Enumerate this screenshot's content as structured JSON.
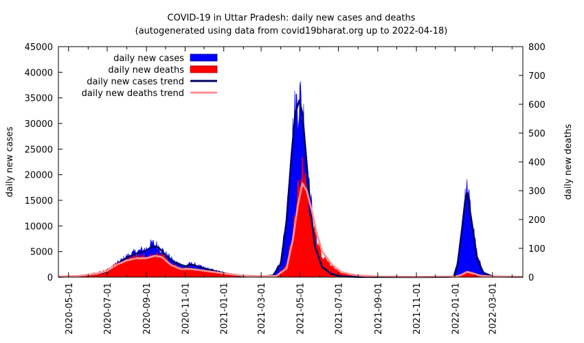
{
  "chart_data": {
    "type": "area",
    "title": "COVID-19 in Uttar Pradesh: daily new cases and deaths",
    "subtitle": "(autogenerated using data from covid19bharat.org up to 2022-04-18)",
    "ylabel": "daily new cases",
    "y2label": "daily new deaths",
    "ylim": [
      0,
      45000
    ],
    "y2lim": [
      0,
      800
    ],
    "xlim": [
      "2020-04-15",
      "2022-04-18"
    ],
    "yticks": [
      0,
      5000,
      10000,
      15000,
      20000,
      25000,
      30000,
      35000,
      40000,
      45000
    ],
    "y2ticks": [
      0,
      100,
      200,
      300,
      400,
      500,
      600,
      700,
      800
    ],
    "xticks": [
      "2020-05-01",
      "2020-07-01",
      "2020-09-01",
      "2020-11-01",
      "2021-01-01",
      "2021-03-01",
      "2021-05-01",
      "2021-07-01",
      "2021-09-01",
      "2021-11-01",
      "2022-01-01",
      "2022-03-01"
    ],
    "legend": {
      "position": "top-left",
      "entries": [
        {
          "label": "daily new cases",
          "color": "#0000ff",
          "style": "bar"
        },
        {
          "label": "daily new deaths",
          "color": "#ff0000",
          "style": "bar"
        },
        {
          "label": "daily new cases trend",
          "color": "#000060",
          "style": "line"
        },
        {
          "label": "daily new deaths trend",
          "color": "#ff9090",
          "style": "line"
        }
      ]
    },
    "series": [
      {
        "name": "daily new cases",
        "axis": "left",
        "style": "bars",
        "color": "#0000ff",
        "x": [
          "2020-04-15",
          "2020-05-15",
          "2020-06-15",
          "2020-07-01",
          "2020-07-15",
          "2020-08-01",
          "2020-08-15",
          "2020-09-01",
          "2020-09-10",
          "2020-09-20",
          "2020-10-01",
          "2020-10-15",
          "2020-11-01",
          "2020-11-10",
          "2020-12-01",
          "2020-12-20",
          "2021-01-01",
          "2021-02-01",
          "2021-03-01",
          "2021-03-20",
          "2021-04-01",
          "2021-04-10",
          "2021-04-18",
          "2021-04-24",
          "2021-05-01",
          "2021-05-08",
          "2021-05-15",
          "2021-05-25",
          "2021-06-05",
          "2021-06-20",
          "2021-07-05",
          "2021-08-01",
          "2021-09-01",
          "2021-11-01",
          "2021-12-20",
          "2021-12-30",
          "2022-01-05",
          "2022-01-12",
          "2022-01-17",
          "2022-01-20",
          "2022-01-27",
          "2022-02-05",
          "2022-02-15",
          "2022-03-01",
          "2022-04-18"
        ],
        "values": [
          100,
          300,
          700,
          1200,
          2500,
          4000,
          4800,
          5500,
          6500,
          6000,
          4500,
          3000,
          2200,
          2600,
          1800,
          1200,
          900,
          150,
          100,
          400,
          3000,
          12000,
          25000,
          33000,
          35000,
          30000,
          18000,
          8000,
          3000,
          1000,
          200,
          40,
          25,
          15,
          50,
          200,
          3000,
          10000,
          15000,
          17000,
          12000,
          4000,
          1000,
          200,
          50
        ]
      },
      {
        "name": "daily new deaths",
        "axis": "right",
        "style": "bars",
        "color": "#ff0000",
        "x": [
          "2020-04-15",
          "2020-05-15",
          "2020-06-15",
          "2020-07-01",
          "2020-07-15",
          "2020-08-01",
          "2020-08-15",
          "2020-09-01",
          "2020-09-15",
          "2020-09-25",
          "2020-10-10",
          "2020-10-25",
          "2020-11-10",
          "2020-11-25",
          "2020-12-15",
          "2021-01-01",
          "2021-02-01",
          "2021-03-01",
          "2021-03-25",
          "2021-04-10",
          "2021-04-20",
          "2021-04-28",
          "2021-05-05",
          "2021-05-12",
          "2021-05-20",
          "2021-05-28",
          "2021-06-05",
          "2021-06-20",
          "2021-07-05",
          "2021-07-20",
          "2021-08-01",
          "2021-09-01",
          "2021-11-01",
          "2022-01-01",
          "2022-01-10",
          "2022-01-20",
          "2022-01-28",
          "2022-02-10",
          "2022-03-01",
          "2022-04-18"
        ],
        "values": [
          3,
          5,
          15,
          25,
          45,
          60,
          70,
          70,
          78,
          72,
          45,
          30,
          30,
          25,
          20,
          15,
          5,
          3,
          5,
          40,
          150,
          290,
          370,
          280,
          200,
          120,
          80,
          40,
          15,
          10,
          7,
          2,
          1,
          3,
          8,
          20,
          15,
          5,
          2,
          1
        ]
      },
      {
        "name": "daily new cases trend",
        "axis": "left",
        "style": "line",
        "color": "#000060",
        "x": [
          "2020-04-15",
          "2020-05-15",
          "2020-06-15",
          "2020-07-01",
          "2020-07-15",
          "2020-08-01",
          "2020-08-15",
          "2020-09-01",
          "2020-09-10",
          "2020-09-20",
          "2020-10-01",
          "2020-10-15",
          "2020-11-01",
          "2020-11-10",
          "2020-12-01",
          "2020-12-20",
          "2021-01-01",
          "2021-02-01",
          "2021-03-01",
          "2021-03-20",
          "2021-04-01",
          "2021-04-10",
          "2021-04-18",
          "2021-04-24",
          "2021-04-30",
          "2021-05-05",
          "2021-05-12",
          "2021-05-18",
          "2021-05-25",
          "2021-06-05",
          "2021-06-20",
          "2021-07-05",
          "2021-08-01",
          "2021-09-01",
          "2021-11-01",
          "2021-12-20",
          "2021-12-30",
          "2022-01-05",
          "2022-01-12",
          "2022-01-17",
          "2022-01-20",
          "2022-01-27",
          "2022-02-05",
          "2022-02-15",
          "2022-03-01",
          "2022-04-18"
        ],
        "values": [
          50,
          200,
          600,
          1100,
          2400,
          3800,
          4600,
          5200,
          6000,
          5800,
          4300,
          2900,
          2100,
          2500,
          1700,
          1100,
          800,
          130,
          100,
          350,
          2600,
          11000,
          24000,
          32000,
          34500,
          32000,
          22000,
          13000,
          6000,
          2000,
          600,
          150,
          40,
          25,
          15,
          40,
          150,
          2500,
          9500,
          15000,
          16500,
          11000,
          3500,
          800,
          150,
          40
        ]
      },
      {
        "name": "daily new deaths trend",
        "axis": "right",
        "style": "line",
        "color": "#ff9090",
        "x": [
          "2020-04-15",
          "2020-05-15",
          "2020-06-15",
          "2020-07-01",
          "2020-07-15",
          "2020-08-01",
          "2020-08-15",
          "2020-09-01",
          "2020-09-15",
          "2020-09-25",
          "2020-10-10",
          "2020-10-25",
          "2020-11-10",
          "2020-11-25",
          "2020-12-15",
          "2021-01-01",
          "2021-02-01",
          "2021-03-01",
          "2021-03-25",
          "2021-04-10",
          "2021-04-20",
          "2021-04-28",
          "2021-05-05",
          "2021-05-12",
          "2021-05-20",
          "2021-05-28",
          "2021-06-05",
          "2021-06-20",
          "2021-07-05",
          "2021-07-20",
          "2021-08-01",
          "2021-09-01",
          "2021-11-01",
          "2022-01-01",
          "2022-01-10",
          "2022-01-20",
          "2022-01-28",
          "2022-02-10",
          "2022-03-01",
          "2022-04-18"
        ],
        "values": [
          2,
          4,
          12,
          22,
          42,
          58,
          65,
          66,
          74,
          70,
          42,
          28,
          28,
          24,
          18,
          13,
          5,
          3,
          4,
          30,
          130,
          250,
          325,
          300,
          230,
          150,
          90,
          45,
          18,
          10,
          6,
          2,
          1,
          2,
          7,
          18,
          14,
          5,
          2,
          1
        ]
      }
    ]
  }
}
